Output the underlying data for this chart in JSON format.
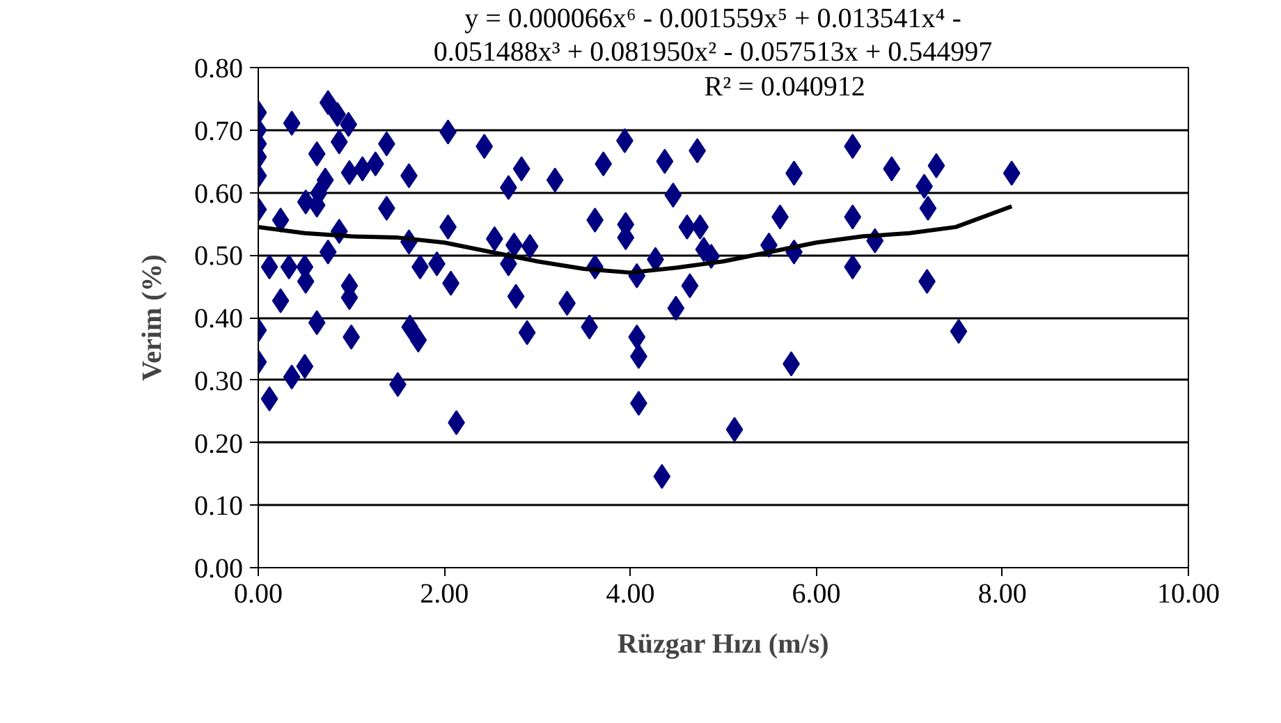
{
  "chart_data": {
    "type": "scatter",
    "xlabel": "Rüzgar Hızı (m/s)",
    "ylabel": "Verim (%)",
    "annotations": [
      "y = 0.000066x⁶  - 0.001559x⁵  + 0.013541x⁴  -",
      "0.051488x³  + 0.081950x²  - 0.057513x  + 0.544997",
      "R² = 0.040912"
    ],
    "xlim": [
      0,
      10
    ],
    "ylim": [
      0,
      0.8
    ],
    "xticks": [
      {
        "value": 0,
        "label": "0.00"
      },
      {
        "value": 2,
        "label": "2.00"
      },
      {
        "value": 4,
        "label": "4.00"
      },
      {
        "value": 6,
        "label": "6.00"
      },
      {
        "value": 8,
        "label": "8.00"
      },
      {
        "value": 10,
        "label": "10.00"
      }
    ],
    "yticks": [
      {
        "value": 0,
        "label": "0.00"
      },
      {
        "value": 0.1,
        "label": "0.10"
      },
      {
        "value": 0.2,
        "label": "0.20"
      },
      {
        "value": 0.3,
        "label": "0.30"
      },
      {
        "value": 0.4,
        "label": "0.40"
      },
      {
        "value": 0.5,
        "label": "0.50"
      },
      {
        "value": 0.6,
        "label": "0.60"
      },
      {
        "value": 0.7,
        "label": "0.70"
      },
      {
        "value": 0.8,
        "label": "0.80"
      }
    ],
    "grid": "y",
    "legend": false,
    "series": [
      {
        "type": "scatter",
        "marker": "diamond",
        "color": "#000080",
        "x": [
          0,
          0,
          0,
          0,
          0,
          0,
          0,
          0,
          0.12,
          0.12,
          0.24,
          0.24,
          0.33,
          0.36,
          0.36,
          0.5,
          0.5,
          0.51,
          0.51,
          0.63,
          0.63,
          0.63,
          0.65,
          0.72,
          0.75,
          0.75,
          0.85,
          0.87,
          0.87,
          0.97,
          0.98,
          0.98,
          0.98,
          1.0,
          1.12,
          1.26,
          1.38,
          1.38,
          1.5,
          1.62,
          1.62,
          1.63,
          1.72,
          1.74,
          1.92,
          2.04,
          2.04,
          2.07,
          2.13,
          2.43,
          2.54,
          2.69,
          2.69,
          2.75,
          2.77,
          2.83,
          2.92,
          2.89,
          3.19,
          3.32,
          3.56,
          3.62,
          3.62,
          3.71,
          3.94,
          3.95,
          3.95,
          4.07,
          4.07,
          4.09,
          4.09,
          4.27,
          4.34,
          4.37,
          4.46,
          4.49,
          4.64,
          4.61,
          4.72,
          4.75,
          4.79,
          4.87,
          5.12,
          5.49,
          5.61,
          5.73,
          5.76,
          5.76,
          6.39,
          6.39,
          6.39,
          6.63,
          6.81,
          7.16,
          7.2,
          7.29,
          7.19,
          7.53,
          8.1
        ],
        "values": [
          0.728,
          0.7,
          0.678,
          0.657,
          0.627,
          0.573,
          0.38,
          0.329,
          0.27,
          0.481,
          0.556,
          0.427,
          0.481,
          0.711,
          0.305,
          0.322,
          0.481,
          0.458,
          0.585,
          0.662,
          0.58,
          0.392,
          0.599,
          0.62,
          0.744,
          0.505,
          0.725,
          0.681,
          0.538,
          0.709,
          0.632,
          0.451,
          0.432,
          0.369,
          0.638,
          0.646,
          0.678,
          0.575,
          0.293,
          0.627,
          0.521,
          0.385,
          0.364,
          0.481,
          0.486,
          0.697,
          0.545,
          0.455,
          0.232,
          0.674,
          0.526,
          0.608,
          0.486,
          0.516,
          0.434,
          0.638,
          0.514,
          0.376,
          0.62,
          0.423,
          0.385,
          0.556,
          0.481,
          0.646,
          0.683,
          0.549,
          0.528,
          0.467,
          0.369,
          0.338,
          0.263,
          0.493,
          0.146,
          0.65,
          0.596,
          0.415,
          0.451,
          0.545,
          0.667,
          0.545,
          0.509,
          0.498,
          0.221,
          0.516,
          0.561,
          0.326,
          0.631,
          0.505,
          0.674,
          0.561,
          0.481,
          0.523,
          0.638,
          0.61,
          0.575,
          0.643,
          0.458,
          0.378,
          0.631
        ]
      },
      {
        "type": "line",
        "line_style": "solid",
        "color": "#000000",
        "x": [
          0,
          0.5,
          1,
          1.5,
          2,
          2.5,
          3,
          3.5,
          4,
          4.5,
          5,
          5.5,
          6,
          6.5,
          7,
          7.5,
          8.1
        ],
        "values": [
          0.545,
          0.535,
          0.53,
          0.528,
          0.52,
          0.505,
          0.49,
          0.478,
          0.472,
          0.48,
          0.49,
          0.505,
          0.52,
          0.53,
          0.535,
          0.545,
          0.578
        ]
      }
    ]
  }
}
